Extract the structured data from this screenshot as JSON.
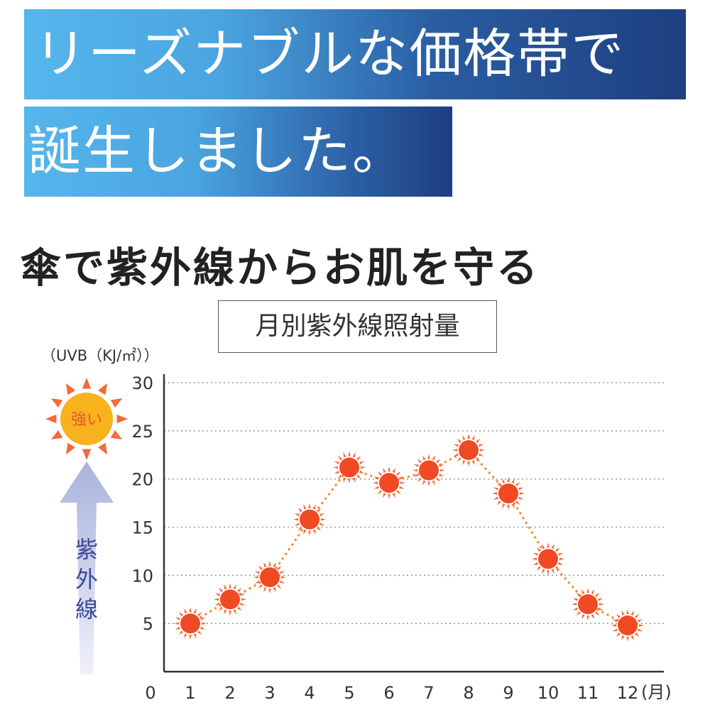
{
  "banner": {
    "line1": "リーズナブルな価格帯で",
    "line2": "誕生しました。"
  },
  "subtitle": "傘で紫外線からお肌を守る",
  "colors": {
    "banner_light": "#56b6ec",
    "banner_dark": "#1e3f80",
    "marker": "#ef4a23",
    "marker_rays": "#f26b3a",
    "line": "#f08a2a",
    "sun": "#f7b21e",
    "arrow": "#c8cde8",
    "arrow_text": "#3e4a9a"
  },
  "chart_data": {
    "type": "line",
    "title": "月別紫外線照射量",
    "ylabel": "（UVB（KJ/㎡））",
    "xlabel": "(月)",
    "origin_label": "0",
    "x": [
      1,
      2,
      3,
      4,
      5,
      6,
      7,
      8,
      9,
      10,
      11,
      12
    ],
    "xtick_labels": [
      "1",
      "2",
      "3",
      "4",
      "5",
      "6",
      "7",
      "8",
      "9",
      "10",
      "11",
      "12"
    ],
    "values": [
      5.0,
      7.5,
      9.8,
      15.8,
      21.2,
      19.6,
      20.9,
      23.0,
      18.5,
      11.7,
      7.0,
      4.8
    ],
    "xlim": [
      0,
      12
    ],
    "ylim": [
      0,
      30
    ],
    "yticks": [
      5,
      10,
      15,
      20,
      25,
      30
    ],
    "grid": true,
    "gridline_style": "dotted",
    "marker": "sun-icon",
    "legend": null,
    "scale_indicator": {
      "sun_label": "強い",
      "arrow_label": "紫外線",
      "icon": "sun-icon"
    }
  }
}
